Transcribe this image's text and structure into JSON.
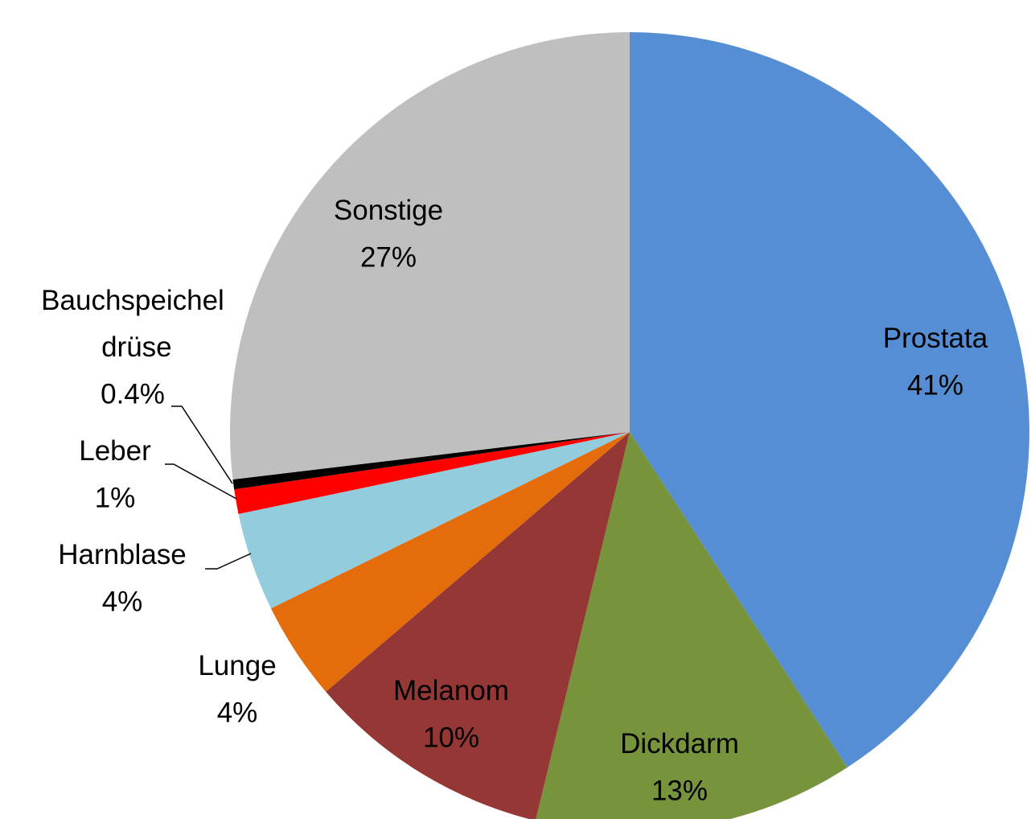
{
  "chart_data": {
    "type": "pie",
    "categories": [
      "Prostata",
      "Dickdarm",
      "Melanom",
      "Lunge",
      "Harnblase",
      "Leber",
      "Bauchspeichel drüse",
      "Sonstige"
    ],
    "values": [
      41,
      13,
      10,
      4,
      4,
      1,
      0.4,
      27
    ],
    "value_labels": [
      "41%",
      "13%",
      "10%",
      "4%",
      "4%",
      "1%",
      "0.4%",
      "27%"
    ],
    "colors": [
      "#558ed5",
      "#77933c",
      "#953735",
      "#e46c0a",
      "#93cddd",
      "#ff0000",
      "#000000",
      "#bfbfbf"
    ]
  }
}
